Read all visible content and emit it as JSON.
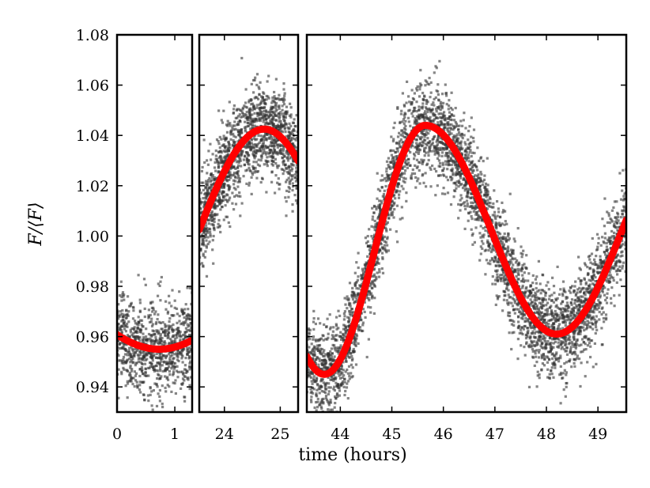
{
  "chart_data": {
    "type": "scatter",
    "xlabel": "time (hours)",
    "ylabel": "F/⟨F⟩",
    "ylim": [
      0.93,
      1.08
    ],
    "yticks": [
      0.94,
      0.96,
      0.98,
      1.0,
      1.02,
      1.04,
      1.06,
      1.08
    ],
    "ytick_labels": [
      "0.94",
      "0.96",
      "0.98",
      "1.00",
      "1.02",
      "1.04",
      "1.06",
      "1.08"
    ],
    "scatter_scatter_std": 0.009,
    "colors": {
      "points": "#333333",
      "model": "#ff0000",
      "frame": "#000000"
    },
    "panels": [
      {
        "name": "panel-1",
        "xlim": [
          0,
          1.3
        ],
        "xticks": [
          0,
          1
        ],
        "xtick_labels": [
          "0",
          "1"
        ],
        "model": {
          "mean": 0.9695,
          "amplitude": 0.0145,
          "min_time": 0.73,
          "period": 4.96
        },
        "n_points": 900
      },
      {
        "name": "panel-2",
        "xlim": [
          23.55,
          25.32
        ],
        "xticks": [
          24,
          25
        ],
        "xtick_labels": [
          "24",
          "25"
        ],
        "model": {
          "mean": 0.998,
          "amplitude": 0.0445,
          "min_time": 22.23,
          "period": 4.96
        },
        "n_points": 1500
      },
      {
        "name": "panel-3",
        "xlim": [
          43.35,
          49.55
        ],
        "xticks": [
          44,
          45,
          46,
          47,
          48,
          49
        ],
        "xtick_labels": [
          "44",
          "45",
          "46",
          "47",
          "48",
          "49"
        ],
        "model": {
          "segments": [
            {
              "to": 45.65,
              "mean": 0.9945,
              "amplitude": 0.0495,
              "min_time": 43.69,
              "period": 3.92
            },
            {
              "to": 49.55,
              "mean": 1.0025,
              "amplitude": 0.0415,
              "min_time": 48.2,
              "period": 5.1
            }
          ]
        },
        "n_points": 4200
      }
    ]
  }
}
